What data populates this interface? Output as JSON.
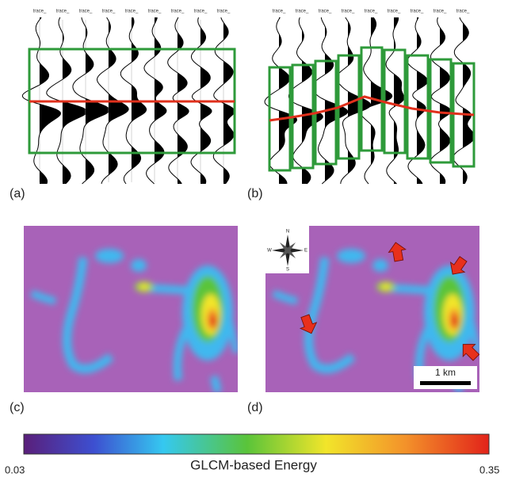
{
  "panels": {
    "a": {
      "label": "(a)",
      "trace_labels": [
        "trace_",
        "trace_",
        "trace_",
        "trace_",
        "trace_",
        "trace_",
        "trace_",
        "trace_",
        "trace_"
      ]
    },
    "b": {
      "label": "(b)",
      "trace_labels": [
        "trace_",
        "trace_",
        "trace_",
        "trace_",
        "trace_",
        "trace_",
        "trace_",
        "trace_",
        "trace_"
      ]
    },
    "c": {
      "label": "(c)"
    },
    "d": {
      "label": "(d)",
      "compass": [
        "N",
        "E",
        "S",
        "W"
      ],
      "scale_bar": "1 km"
    }
  },
  "colorbar": {
    "title": "GLCM-based Energy",
    "min_label": "0.03",
    "max_label": "0.35"
  }
}
